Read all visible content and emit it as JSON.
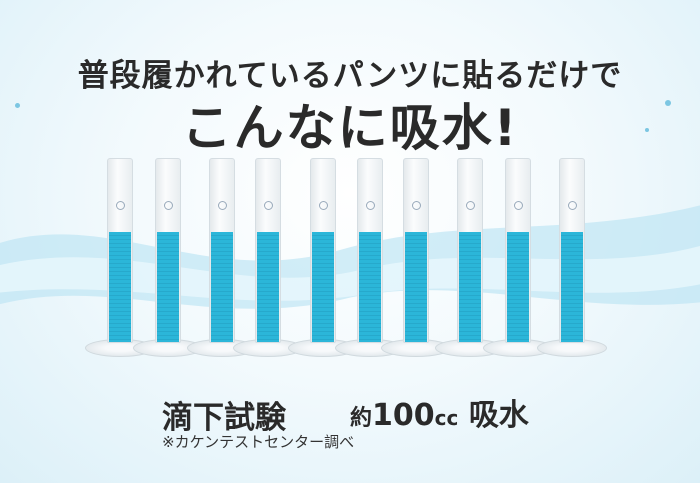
{
  "headline": {
    "line1": "普段履かれているパンツに貼るだけで",
    "line2": "こんなに吸水!"
  },
  "result": {
    "test_label": "滴下試験",
    "prefix": "約",
    "value": "100",
    "unit": "cc",
    "suffix": "吸水",
    "note": "※カケンテストセンター調べ"
  },
  "cylinders": {
    "count": 10,
    "liquid_color": "#2bb6d9"
  },
  "colors": {
    "text": "#2a2a2a",
    "water": "#aee0f2"
  }
}
